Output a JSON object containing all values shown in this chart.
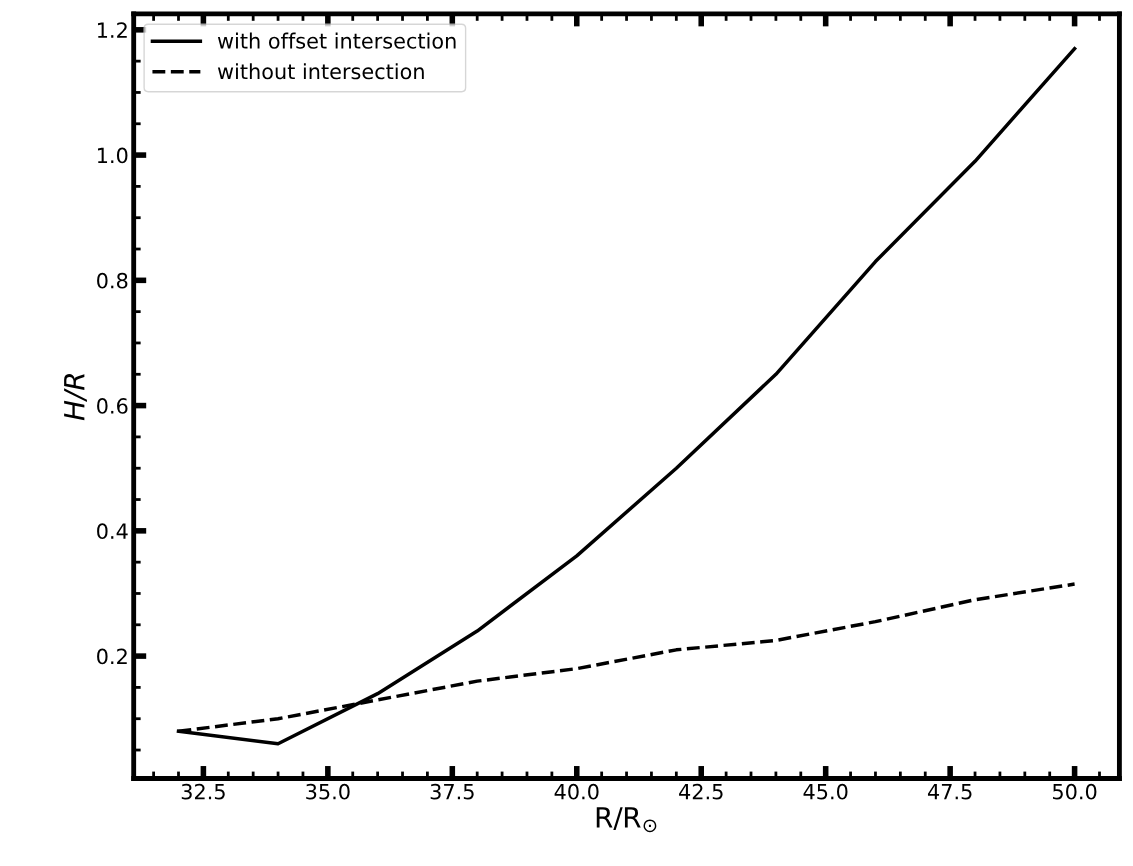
{
  "chart_data": {
    "type": "line",
    "xlabel": "R/R$_{⊙}$",
    "ylabel": "H/R",
    "x": [
      32,
      34,
      36,
      38,
      40,
      42,
      44,
      46,
      48,
      50
    ],
    "series": [
      {
        "name": "with offset intersection",
        "color": "#000000",
        "line_style": "solid",
        "values": [
          0.08,
          0.06,
          0.14,
          0.24,
          0.36,
          0.5,
          0.65,
          0.83,
          0.99,
          1.17
        ]
      },
      {
        "name": "without intersection",
        "color": "#000000",
        "line_style": "dashed",
        "values": [
          0.08,
          0.1,
          0.13,
          0.16,
          0.18,
          0.21,
          0.225,
          0.255,
          0.29,
          0.315
        ]
      }
    ],
    "xlim": [
      31.1,
      50.9
    ],
    "ylim": [
      0.0045,
      1.2255
    ],
    "xticks": [
      {
        "value": 32.5,
        "label": "32.5"
      },
      {
        "value": 35,
        "label": "35.0"
      },
      {
        "value": 37.5,
        "label": "37.5"
      },
      {
        "value": 40,
        "label": "40.0"
      },
      {
        "value": 42.5,
        "label": "42.5"
      },
      {
        "value": 45,
        "label": "45.0"
      },
      {
        "value": 47.5,
        "label": "47.5"
      },
      {
        "value": 50,
        "label": "50.0"
      }
    ],
    "yticks": [
      0.2,
      0.4,
      0.6,
      0.8,
      {
        "value": 1.0,
        "label": "1.0"
      },
      1.2
    ],
    "grid": false,
    "legend": "top left"
  }
}
